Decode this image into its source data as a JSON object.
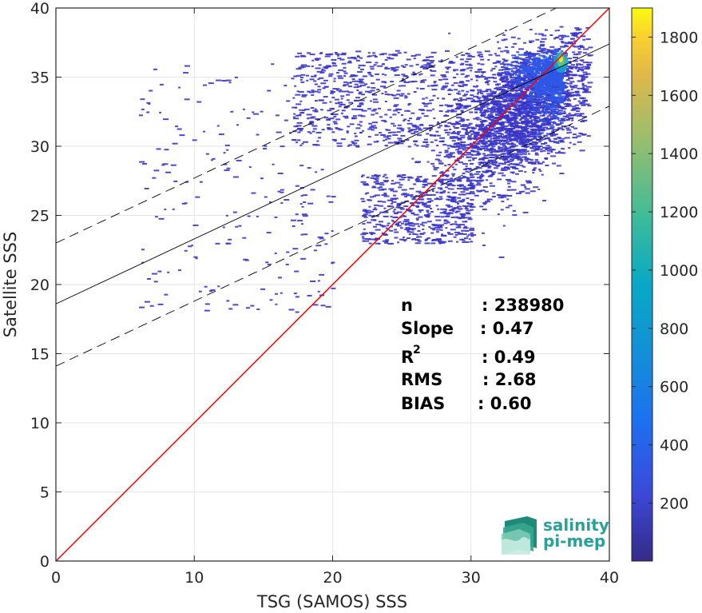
{
  "chart_data": {
    "type": "heatmap",
    "xlabel": "TSG (SAMOS) SSS",
    "ylabel": "Satellite SSS",
    "xlim": [
      0,
      40
    ],
    "ylim": [
      0,
      40
    ],
    "xticks": [
      "0",
      "10",
      "20",
      "30",
      "40"
    ],
    "yticks": [
      "0",
      "5",
      "10",
      "15",
      "20",
      "25",
      "30",
      "35",
      "40"
    ],
    "grid": true,
    "colorbar": {
      "range": [
        1,
        1900
      ],
      "ticks": [
        "200",
        "400",
        "600",
        "800",
        "1000",
        "1200",
        "1400",
        "1600",
        "1800"
      ],
      "colormap": "parula"
    },
    "lines": [
      {
        "name": "one-to-one",
        "color": "#ff0000",
        "style": "solid",
        "points": [
          [
            0,
            0
          ],
          [
            40,
            40
          ]
        ]
      },
      {
        "name": "regression",
        "color": "#000000",
        "style": "solid",
        "points": [
          [
            0,
            18.6
          ],
          [
            40,
            37.4
          ]
        ]
      },
      {
        "name": "upper-bound",
        "color": "#000000",
        "style": "dashed",
        "points": [
          [
            0,
            23.0
          ],
          [
            40,
            41.8
          ]
        ]
      },
      {
        "name": "lower-bound",
        "color": "#000000",
        "style": "dashed",
        "points": [
          [
            0,
            14.1
          ],
          [
            40,
            32.9
          ]
        ]
      }
    ],
    "stats": {
      "n": "238980",
      "slope": "0.47",
      "r2": "0.49",
      "rms": "2.68",
      "bias": "0.60"
    },
    "density": {
      "core_center": [
        33.5,
        32.5
      ],
      "peak_location": [
        36.5,
        36.3
      ],
      "x_range": [
        6,
        38.5
      ],
      "y_range": [
        17.5,
        38.7
      ]
    }
  },
  "stats_labels": {
    "n": "n",
    "slope": "Slope",
    "r2_base": "R",
    "r2_sup": "2",
    "rms": "RMS",
    "bias": "BIAS"
  },
  "stats_values": {
    "n": ": 238980",
    "slope": ": 0.47",
    "r2": ": 0.49",
    "rms": ": 2.68",
    "bias": ": 0.60"
  },
  "logo": {
    "line1": "salinity",
    "line2": "pi-mep"
  }
}
